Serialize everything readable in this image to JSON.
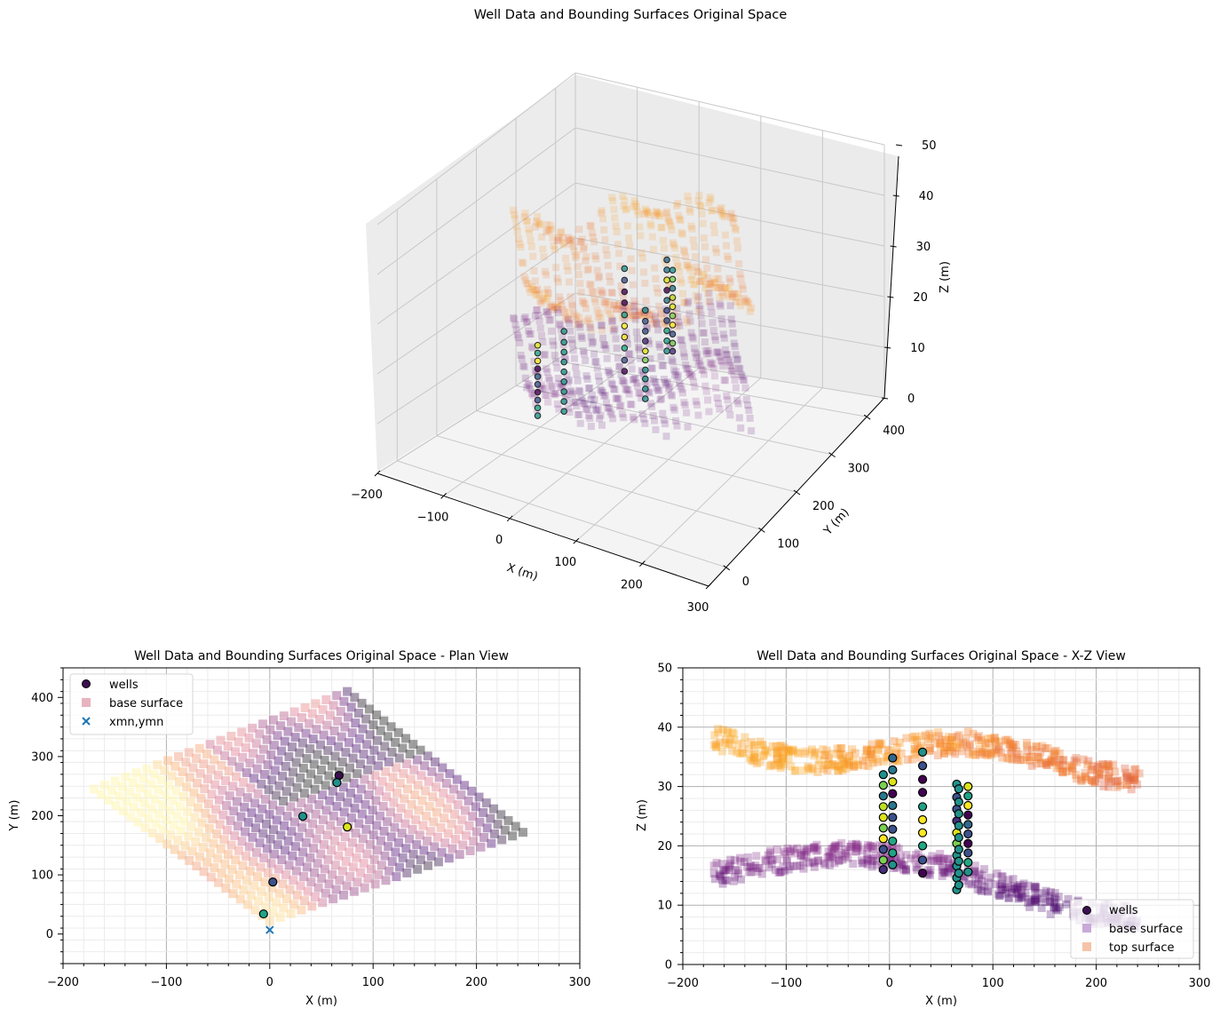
{
  "figure": {
    "suptitle": "Well Data and Bounding Surfaces Original Space"
  },
  "colors": {
    "base_surface_legend": "#e8b3c0",
    "base_surface_xz": "#b08ec4",
    "top_surface_legend": "#f6c3a8",
    "xmn_marker": "#1f77b4",
    "grid_major": "#b0b0b0",
    "grid_minor": "#ebebeb",
    "pane": "#f2f2f2"
  },
  "chart_data": [
    {
      "id": "3d",
      "type": "scatter",
      "projection": "3d",
      "title": "",
      "xlabel": "X (m)",
      "ylabel": "Y (m)",
      "zlabel": "Z (m)",
      "xlim": [
        -200,
        300
      ],
      "ylim": [
        -50,
        450
      ],
      "zlim": [
        0,
        50
      ],
      "xticks": [
        "−200",
        "−100",
        "0",
        "100",
        "200",
        "300"
      ],
      "yticks": [
        "0",
        "100",
        "200",
        "300",
        "400"
      ],
      "zticks": [
        "0",
        "10",
        "20",
        "30",
        "40",
        "50"
      ],
      "grid": true,
      "series": [
        {
          "name": "top surface",
          "z_range": [
            29,
            41
          ],
          "colormap": "inferno-light"
        },
        {
          "name": "base surface",
          "z_range": [
            10,
            20
          ],
          "colormap": "purple"
        },
        {
          "name": "wells",
          "marker": "circle",
          "colormap": "viridis"
        }
      ]
    },
    {
      "id": "plan",
      "type": "scatter",
      "title": "Well Data and Bounding Surfaces Original Space - Plan View",
      "xlabel": "X (m)",
      "ylabel": "Y (m)",
      "xlim": [
        -200,
        300
      ],
      "ylim": [
        -50,
        450
      ],
      "xticks": [
        "−200",
        "−100",
        "0",
        "100",
        "200",
        "300"
      ],
      "yticks": [
        "0",
        "100",
        "200",
        "300",
        "400"
      ],
      "grid": true,
      "legend": {
        "location": "upper-left",
        "entries": [
          "wells",
          "base surface",
          "xmn,ymn"
        ]
      },
      "wells": [
        {
          "x": 67,
          "y": 268,
          "color": "#3b0f50"
        },
        {
          "x": 65,
          "y": 256,
          "color": "#21918c"
        },
        {
          "x": 32,
          "y": 199,
          "color": "#21918c"
        },
        {
          "x": 75,
          "y": 181,
          "color": "#dde318"
        },
        {
          "x": 3,
          "y": 88,
          "color": "#3b528b"
        },
        {
          "x": -6,
          "y": 34,
          "color": "#20a386"
        }
      ],
      "xmn_ymn": {
        "x": 0,
        "y": 7
      },
      "base_surface_corners": [
        {
          "x": -170,
          "y": 245
        },
        {
          "x": 75,
          "y": 410
        },
        {
          "x": 245,
          "y": 172
        },
        {
          "x": 0,
          "y": 22
        }
      ]
    },
    {
      "id": "xz",
      "type": "scatter",
      "title": "Well Data and Bounding Surfaces Original Space - X-Z View",
      "xlabel": "X (m)",
      "ylabel": "Z (m)",
      "xlim": [
        -200,
        300
      ],
      "ylim": [
        0,
        50
      ],
      "xticks": [
        "−200",
        "−100",
        "0",
        "100",
        "200",
        "300"
      ],
      "yticks": [
        "0",
        "10",
        "20",
        "30",
        "40",
        "50"
      ],
      "grid": true,
      "legend": {
        "location": "lower-right",
        "entries": [
          "wells",
          "base surface",
          "top surface"
        ]
      },
      "well_columns": [
        {
          "x": -6,
          "z": [
            32.0,
            30.2,
            28.4,
            26.6,
            24.8,
            23.0,
            21.2,
            19.4,
            17.6,
            16.0
          ],
          "colors": [
            "#21918c",
            "#7ad151",
            "#2a788e",
            "#bddf26",
            "#dde318",
            "#7ad151",
            "#fde725",
            "#3b528b",
            "#7ad151",
            "#472d7b"
          ]
        },
        {
          "x": 3,
          "z": [
            34.8,
            32.8,
            30.8,
            28.8,
            26.8,
            24.8,
            22.8,
            20.8,
            18.8,
            16.8
          ],
          "colors": [
            "#31688e",
            "#2a788e",
            "#dde318",
            "#440154",
            "#2a788e",
            "#3b528b",
            "#3b528b",
            "#22a884",
            "#20a386",
            "#21918c"
          ]
        },
        {
          "x": 32,
          "z": [
            35.8,
            33.5,
            31.2,
            29.0,
            26.6,
            24.4,
            22.2,
            20.0,
            17.6,
            15.4
          ],
          "colors": [
            "#21918c",
            "#3b528b",
            "#440154",
            "#440154",
            "#20a386",
            "#fde725",
            "#fde725",
            "#22a884",
            "#3b528b",
            "#440154"
          ]
        },
        {
          "x": 65,
          "z": [
            30.4,
            28.2,
            26.2,
            24.2,
            22.2,
            20.4,
            18.4,
            16.6,
            14.6,
            12.6
          ],
          "colors": [
            "#21918c",
            "#3b528b",
            "#3b528b",
            "#472d7b",
            "#dde318",
            "#7ad151",
            "#21918c",
            "#21918c",
            "#21918c",
            "#21918c"
          ]
        },
        {
          "x": 67,
          "z": [
            29.6,
            27.4,
            25.4,
            23.4,
            21.4,
            19.4,
            17.4,
            15.4,
            13.4
          ],
          "colors": [
            "#21918c",
            "#21918c",
            "#21918c",
            "#21918c",
            "#21918c",
            "#21918c",
            "#21918c",
            "#21918c",
            "#21918c"
          ]
        },
        {
          "x": 76,
          "z": [
            30.0,
            28.4,
            26.8,
            25.2,
            23.6,
            22.0,
            20.4,
            18.8,
            17.2,
            15.6
          ],
          "colors": [
            "#dde318",
            "#20a386",
            "#fde725",
            "#440154",
            "#31688e",
            "#3b528b",
            "#440154",
            "#3b528b",
            "#22a884",
            "#21918c"
          ]
        }
      ],
      "top_surface_z_range": [
        30,
        41
      ],
      "base_surface_z_range": [
        9,
        20
      ]
    }
  ]
}
